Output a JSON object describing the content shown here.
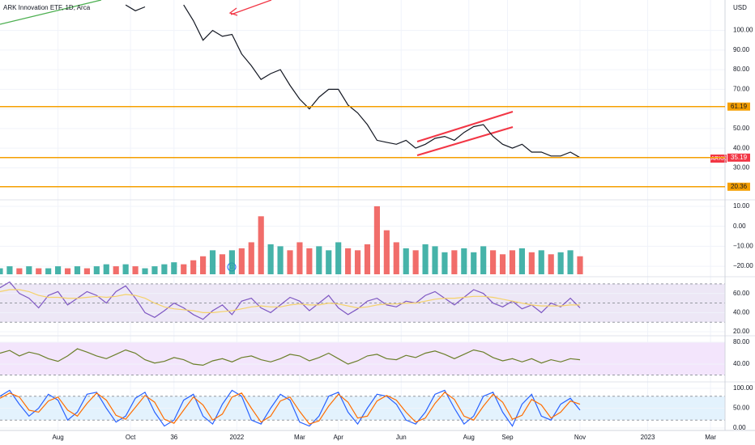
{
  "chart_data": [
    {
      "type": "line",
      "title": "ARK Innovation ETF, 1D, Arca",
      "currency": "USD",
      "symbol": "ARKK",
      "event_label": "D",
      "x": [
        0,
        2,
        4,
        6,
        8,
        10,
        12,
        14,
        16,
        18,
        20,
        22,
        24,
        26,
        28,
        30,
        32,
        34,
        36,
        38,
        40,
        42,
        44,
        46,
        48,
        50,
        52,
        54,
        56,
        58,
        60,
        62,
        64,
        66,
        68,
        70,
        72,
        74,
        76,
        78,
        80,
        82,
        84,
        86,
        88,
        90,
        92,
        94,
        96,
        98,
        100,
        102,
        104,
        106,
        108,
        110,
        112,
        114,
        116,
        118,
        120
      ],
      "xlim": [
        0,
        150
      ],
      "xticks": [
        {
          "value": 12,
          "label": "Aug"
        },
        {
          "value": 27,
          "label": "Oct"
        },
        36,
        {
          "value": 49,
          "label": "2022"
        },
        {
          "value": 62,
          "label": "Mar"
        },
        {
          "value": 70,
          "label": "Apr"
        },
        {
          "value": 83,
          "label": "Jun"
        },
        {
          "value": 97,
          "label": "Aug"
        },
        {
          "value": 105,
          "label": "Sep"
        },
        {
          "value": 120,
          "label": "Nov"
        },
        {
          "value": 134,
          "label": "2023"
        },
        {
          "value": 147,
          "label": "Mar"
        }
      ],
      "ylim": [
        14.5,
        115.5
      ],
      "yticks": [
        {
          "value": 100,
          "label": "100.00"
        },
        {
          "value": 90,
          "label": "90.00"
        },
        {
          "value": 80,
          "label": "80.00"
        },
        {
          "value": 70,
          "label": "70.00"
        },
        {
          "value": 60,
          "label": "60.00"
        },
        {
          "value": 50,
          "label": "50.00"
        },
        {
          "value": 40,
          "label": "40.00"
        },
        {
          "value": 30,
          "label": "30.00"
        }
      ],
      "levels": [
        61.19,
        35.19,
        20.36
      ],
      "level_color": "#f59f00",
      "grid": true,
      "series": [
        {
          "color": "#131722",
          "values": [
            null,
            null,
            null,
            null,
            null,
            null,
            null,
            null,
            null,
            null,
            null,
            null,
            null,
            113,
            110,
            112,
            null,
            null,
            null,
            113,
            105,
            95,
            100,
            97,
            98,
            88,
            82,
            75,
            78,
            80,
            72,
            65,
            60,
            66,
            70,
            70,
            62,
            58,
            52,
            44,
            43,
            42,
            44,
            40,
            42,
            45,
            46,
            44,
            48,
            51,
            52,
            46,
            42,
            40,
            42,
            38,
            38,
            36,
            36,
            38,
            35.19
          ]
        }
      ]
    },
    {
      "type": "bar",
      "ylim": [
        -24,
        12
      ],
      "up_color": "#26a69a",
      "down_color": "#ef5350",
      "yticks": [
        {
          "value": 10,
          "label": "10.00"
        },
        {
          "value": 0,
          "label": "0.00"
        },
        {
          "value": -10,
          "label": "−10.00"
        },
        {
          "value": -20,
          "label": "−20.00"
        }
      ],
      "values": [
        -21,
        -20,
        -21,
        -20,
        -21,
        -21,
        -20,
        -21,
        -20,
        -21,
        -20,
        -19,
        -20,
        -19,
        -20,
        -21,
        -20,
        -19,
        -18,
        -19,
        -17,
        -15,
        -12,
        -14,
        -12,
        -11,
        -8,
        5,
        -9,
        -10,
        -12,
        -8,
        -11,
        -10,
        -12,
        -8,
        -11,
        -12,
        -9,
        10,
        -2,
        -8,
        -11,
        -12,
        -9,
        -10,
        -13,
        -12,
        -11,
        -13,
        -10,
        -12,
        -14,
        -12,
        -11,
        -13,
        -12,
        -14,
        -13,
        -12,
        -15
      ]
    },
    {
      "type": "line",
      "ylim": [
        15.8,
        75
      ],
      "bands": [
        70,
        50,
        30
      ],
      "band_color": "#ede7f6",
      "yticks": [
        {
          "value": 60,
          "label": "60.00"
        },
        {
          "value": 40,
          "label": "40.00"
        },
        {
          "value": 20,
          "label": "20.00"
        }
      ],
      "series": [
        {
          "color": "#7e57c2",
          "values": [
            66,
            72,
            60,
            55,
            45,
            58,
            62,
            48,
            55,
            62,
            58,
            50,
            62,
            68,
            55,
            40,
            35,
            42,
            50,
            45,
            38,
            33,
            42,
            48,
            38,
            52,
            55,
            45,
            40,
            48,
            56,
            52,
            42,
            50,
            58,
            45,
            38,
            44,
            52,
            55,
            48,
            46,
            52,
            50,
            58,
            62,
            55,
            48,
            56,
            64,
            60,
            50,
            46,
            52,
            44,
            48,
            40,
            50,
            46,
            55,
            45
          ]
        },
        {
          "color": "#f5d26a",
          "values": [
            62,
            64,
            64,
            62,
            58,
            56,
            56,
            55,
            55,
            56,
            57,
            56,
            57,
            59,
            58,
            55,
            50,
            46,
            44,
            43,
            42,
            40,
            40,
            41,
            42,
            44,
            46,
            47,
            46,
            46,
            48,
            49,
            48,
            48,
            50,
            49,
            47,
            45,
            46,
            48,
            49,
            49,
            50,
            50,
            52,
            54,
            55,
            55,
            56,
            57,
            57,
            56,
            54,
            52,
            50,
            48,
            47,
            47,
            47,
            48,
            48
          ]
        }
      ]
    },
    {
      "type": "line",
      "ylim": [
        13.4,
        87.4
      ],
      "bands": [
        80,
        20
      ],
      "band_color": "#f3e5fc",
      "yticks": [
        {
          "value": 80,
          "label": "80.00"
        },
        {
          "value": 40,
          "label": "40.00"
        }
      ],
      "series": [
        {
          "color": "#6b7f2a",
          "values": [
            60,
            65,
            55,
            62,
            58,
            50,
            45,
            55,
            68,
            62,
            55,
            50,
            58,
            66,
            60,
            48,
            42,
            45,
            52,
            48,
            40,
            38,
            46,
            50,
            44,
            52,
            55,
            48,
            44,
            50,
            58,
            55,
            46,
            52,
            60,
            50,
            40,
            46,
            55,
            58,
            50,
            48,
            56,
            52,
            60,
            64,
            58,
            50,
            58,
            66,
            62,
            52,
            46,
            50,
            44,
            50,
            42,
            48,
            44,
            50,
            48
          ]
        }
      ]
    },
    {
      "type": "line",
      "ylim": [
        -2,
        110
      ],
      "bands": [
        80,
        20
      ],
      "band_color": "#e3f2fd",
      "yticks": [
        {
          "value": 100,
          "label": "100.00"
        },
        {
          "value": 50,
          "label": "50.00"
        },
        {
          "value": 0,
          "label": "0.00"
        }
      ],
      "series": [
        {
          "color": "#2962ff",
          "values": [
            80,
            95,
            60,
            30,
            50,
            85,
            70,
            20,
            40,
            85,
            90,
            50,
            15,
            30,
            75,
            90,
            40,
            5,
            20,
            70,
            85,
            30,
            10,
            60,
            95,
            80,
            20,
            10,
            50,
            85,
            70,
            15,
            5,
            30,
            80,
            90,
            40,
            10,
            50,
            85,
            80,
            60,
            20,
            10,
            40,
            85,
            95,
            50,
            10,
            30,
            80,
            90,
            40,
            5,
            60,
            85,
            30,
            20,
            60,
            75,
            45
          ]
        },
        {
          "color": "#ff6d00",
          "values": [
            75,
            88,
            78,
            45,
            40,
            68,
            78,
            45,
            30,
            62,
            88,
            70,
            32,
            22,
            52,
            82,
            65,
            22,
            12,
            45,
            78,
            58,
            20,
            35,
            78,
            88,
            50,
            15,
            30,
            68,
            78,
            42,
            10,
            18,
            55,
            85,
            65,
            25,
            30,
            68,
            82,
            70,
            40,
            15,
            25,
            62,
            90,
            72,
            30,
            20,
            55,
            85,
            65,
            22,
            32,
            72,
            58,
            25,
            40,
            68,
            60
          ]
        }
      ]
    }
  ]
}
